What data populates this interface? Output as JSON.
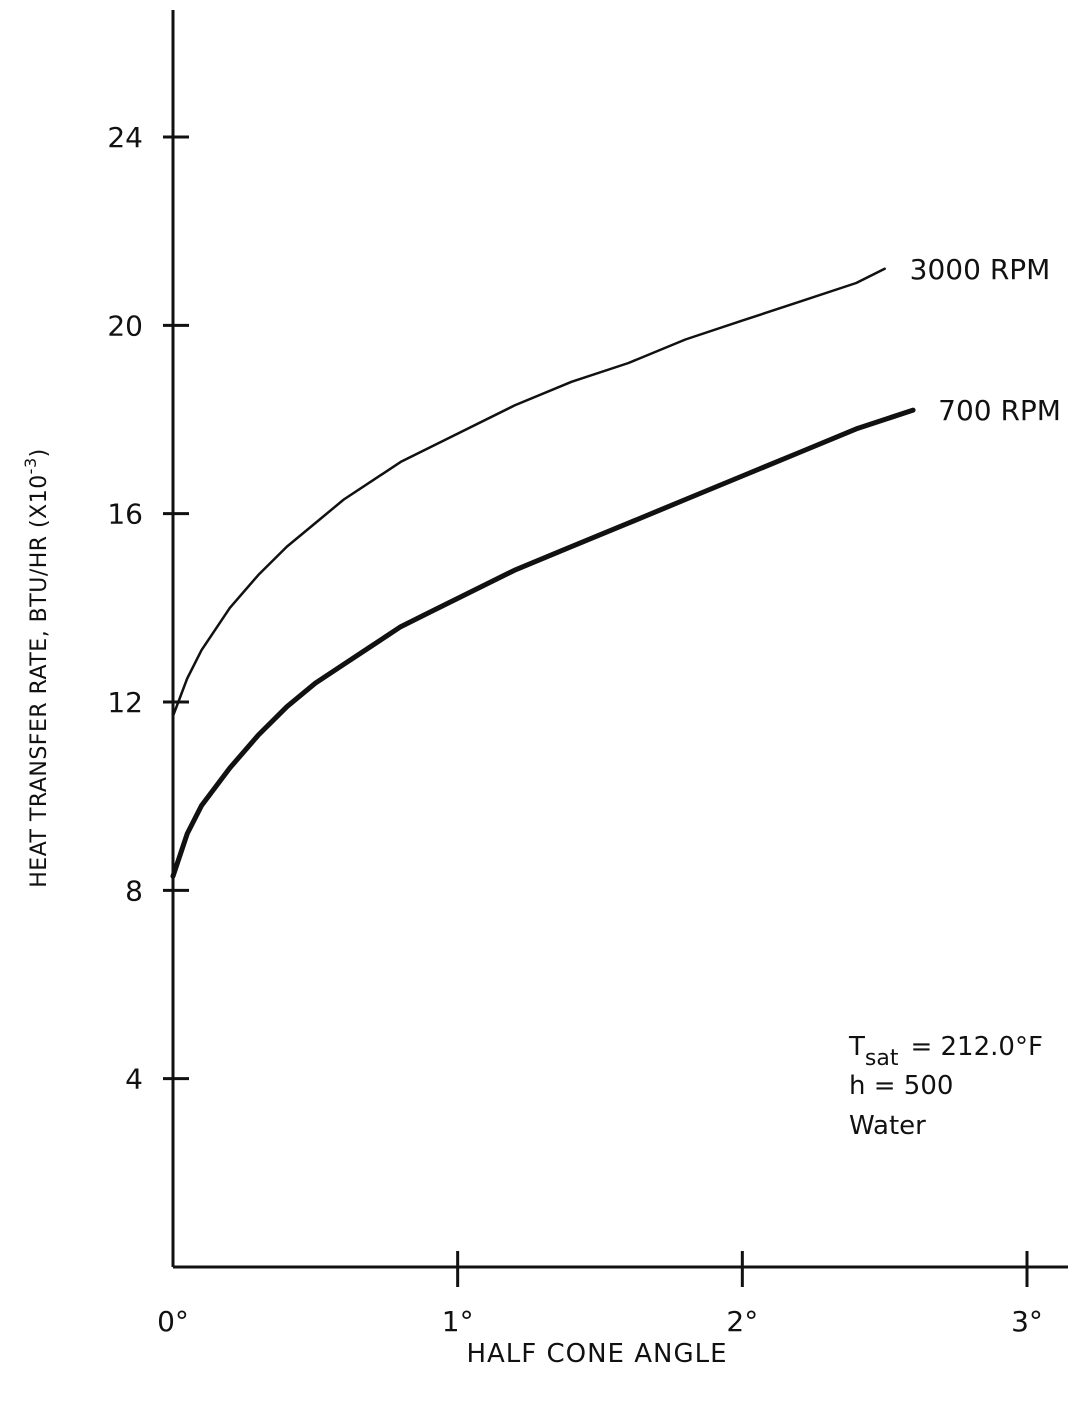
{
  "chart_data": {
    "type": "line",
    "title": "",
    "xlabel": "HALF CONE ANGLE",
    "ylabel": "HEAT TRANSFER RATE, BTU/HR (X10",
    "ylabel_exponent": "-3",
    "ylabel_close": ")",
    "xlim": [
      0,
      3
    ],
    "ylim": [
      0,
      26.5
    ],
    "grid": false,
    "x_ticks": [
      {
        "value": 0,
        "label": "0°"
      },
      {
        "value": 1,
        "label": "1°"
      },
      {
        "value": 2,
        "label": "2°"
      },
      {
        "value": 3,
        "label": "3°"
      }
    ],
    "y_ticks": [
      {
        "value": 4,
        "label": "4"
      },
      {
        "value": 8,
        "label": "8"
      },
      {
        "value": 12,
        "label": "12"
      },
      {
        "value": 16,
        "label": "16"
      },
      {
        "value": 20,
        "label": "20"
      },
      {
        "value": 24,
        "label": "24"
      }
    ],
    "series": [
      {
        "name": "3000 RPM",
        "color": "#111111",
        "weight": "thin",
        "x": [
          0,
          0.05,
          0.1,
          0.2,
          0.3,
          0.4,
          0.5,
          0.6,
          0.7,
          0.8,
          0.9,
          1.0,
          1.2,
          1.4,
          1.6,
          1.8,
          2.0,
          2.2,
          2.4,
          2.5
        ],
        "y": [
          11.7,
          12.5,
          13.1,
          14.0,
          14.7,
          15.3,
          15.8,
          16.3,
          16.7,
          17.1,
          17.4,
          17.7,
          18.3,
          18.8,
          19.2,
          19.7,
          20.1,
          20.5,
          20.9,
          21.2
        ]
      },
      {
        "name": "700 RPM",
        "color": "#111111",
        "weight": "thick",
        "x": [
          0,
          0.05,
          0.1,
          0.2,
          0.3,
          0.4,
          0.5,
          0.6,
          0.7,
          0.8,
          0.9,
          1.0,
          1.2,
          1.4,
          1.6,
          1.8,
          2.0,
          2.2,
          2.4,
          2.6
        ],
        "y": [
          8.3,
          9.2,
          9.8,
          10.6,
          11.3,
          11.9,
          12.4,
          12.8,
          13.2,
          13.6,
          13.9,
          14.2,
          14.8,
          15.3,
          15.8,
          16.3,
          16.8,
          17.3,
          17.8,
          18.2
        ]
      }
    ],
    "annotation": {
      "tsat_symbol": "T",
      "tsat_subscript": "sat",
      "tsat_value": "= 212.0°F",
      "h_line": "h = 500",
      "fluid_line": "Water"
    }
  }
}
